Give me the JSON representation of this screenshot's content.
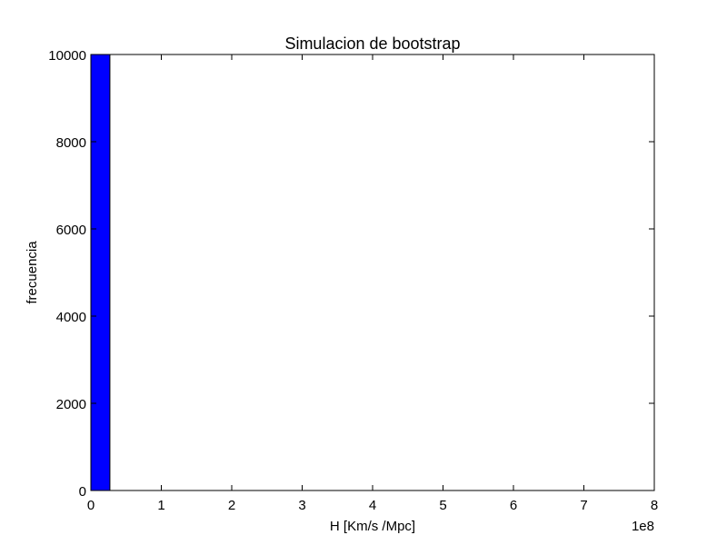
{
  "chart_data": {
    "type": "bar",
    "title": "Simulacion de bootstrap",
    "xlabel": "H [Km/s /Mpc]",
    "ylabel": "frecuencia",
    "x_offset_text": "1e8",
    "xlim": [
      0,
      8
    ],
    "ylim": [
      0,
      10000
    ],
    "x_ticks": [
      0,
      1,
      2,
      3,
      4,
      5,
      6,
      7,
      8
    ],
    "y_ticks": [
      0,
      2000,
      4000,
      6000,
      8000,
      10000
    ],
    "x_tick_labels": [
      "0",
      "1",
      "2",
      "3",
      "4",
      "5",
      "6",
      "7",
      "8"
    ],
    "y_tick_labels": [
      "0",
      "2000",
      "4000",
      "6000",
      "8000",
      "10000"
    ],
    "bars": [
      {
        "x0": 0.0,
        "x1": 0.27,
        "value": 10000
      }
    ],
    "grid": false,
    "colors": {
      "bar_fill": "#0000ff",
      "bar_edge": "#000000",
      "axes": "#000000",
      "background": "#ffffff"
    }
  }
}
